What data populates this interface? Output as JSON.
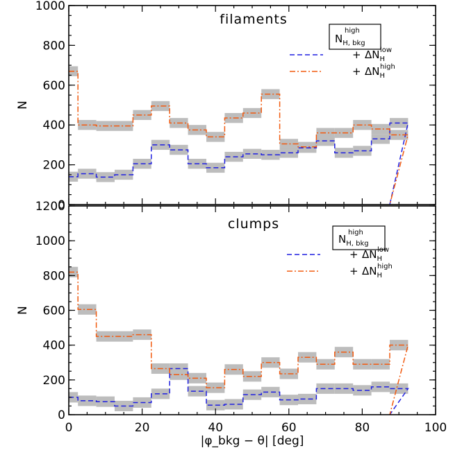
{
  "colors": {
    "blue": "#1f1fe0",
    "orange": "#f25a0f",
    "band": "#bdbdbd",
    "axes": "#000000"
  },
  "chart_data": [
    {
      "type": "line",
      "title": "filaments",
      "xlabel": "|φ_bkg − θ| [deg]",
      "ylabel": "N",
      "xlim": [
        0,
        100
      ],
      "ylim": [
        0,
        1000
      ],
      "xticks": [
        0,
        20,
        40,
        60,
        80,
        100
      ],
      "yticks": [
        0,
        200,
        400,
        600,
        800,
        1000
      ],
      "grid": false,
      "legend": {
        "placement": "top-right",
        "box_main": "N",
        "box_sup": "high",
        "box_sub": "H, bkg",
        "entries": [
          {
            "plus": "+",
            "label_main": "ΔN",
            "label_sub": "H",
            "label_sup": "low"
          },
          {
            "plus": "+",
            "label_main": "ΔN",
            "label_sub": "H",
            "label_sup": "high"
          }
        ]
      },
      "bin_edges": [
        0,
        2.5,
        7.5,
        12.5,
        17.5,
        22.5,
        27.5,
        32.5,
        37.5,
        42.5,
        47.5,
        52.5,
        57.5,
        62.5,
        67.5,
        72.5,
        77.5,
        82.5,
        87.5
      ],
      "series": [
        {
          "name": "+ ΔN_H^low",
          "style": "dashed",
          "values": [
            140,
            155,
            138,
            150,
            205,
            300,
            275,
            205,
            185,
            240,
            255,
            250,
            260,
            285,
            320,
            260,
            270,
            330,
            410
          ]
        },
        {
          "name": "+ ΔN_H^high",
          "style": "dash-dot",
          "values": [
            670,
            400,
            395,
            395,
            450,
            495,
            410,
            375,
            340,
            435,
            460,
            555,
            305,
            290,
            360,
            360,
            400,
            380,
            350
          ]
        }
      ],
      "band_halfwidth": 25
    },
    {
      "type": "line",
      "title": "clumps",
      "xlabel": "|φ_bkg − θ| [deg]",
      "ylabel": "N",
      "xlim": [
        0,
        100
      ],
      "ylim": [
        0,
        1200
      ],
      "xticks": [
        0,
        20,
        40,
        60,
        80,
        100
      ],
      "yticks": [
        0,
        200,
        400,
        600,
        800,
        1000,
        1200
      ],
      "grid": false,
      "legend": {
        "placement": "top-right",
        "box_main": "N",
        "box_sup": "high",
        "box_sub": "H, bkg",
        "entries": [
          {
            "plus": "+",
            "label_main": "ΔN",
            "label_sub": "H",
            "label_sup": "low"
          },
          {
            "plus": "+",
            "label_main": "ΔN",
            "label_sub": "H",
            "label_sup": "high"
          }
        ]
      },
      "bin_edges": [
        0,
        2.5,
        7.5,
        12.5,
        17.5,
        22.5,
        27.5,
        32.5,
        37.5,
        42.5,
        47.5,
        52.5,
        57.5,
        62.5,
        67.5,
        72.5,
        77.5,
        82.5,
        87.5
      ],
      "series": [
        {
          "name": "+ ΔN_H^low",
          "style": "dashed",
          "values": [
            100,
            80,
            75,
            50,
            70,
            120,
            265,
            135,
            55,
            60,
            115,
            130,
            85,
            90,
            150,
            150,
            140,
            160,
            150
          ]
        },
        {
          "name": "+ ΔN_H^high",
          "style": "dash-dot",
          "values": [
            820,
            605,
            450,
            450,
            460,
            265,
            230,
            210,
            155,
            260,
            220,
            300,
            235,
            330,
            290,
            360,
            290,
            290,
            400
          ]
        }
      ],
      "band_halfwidth": 30
    }
  ]
}
